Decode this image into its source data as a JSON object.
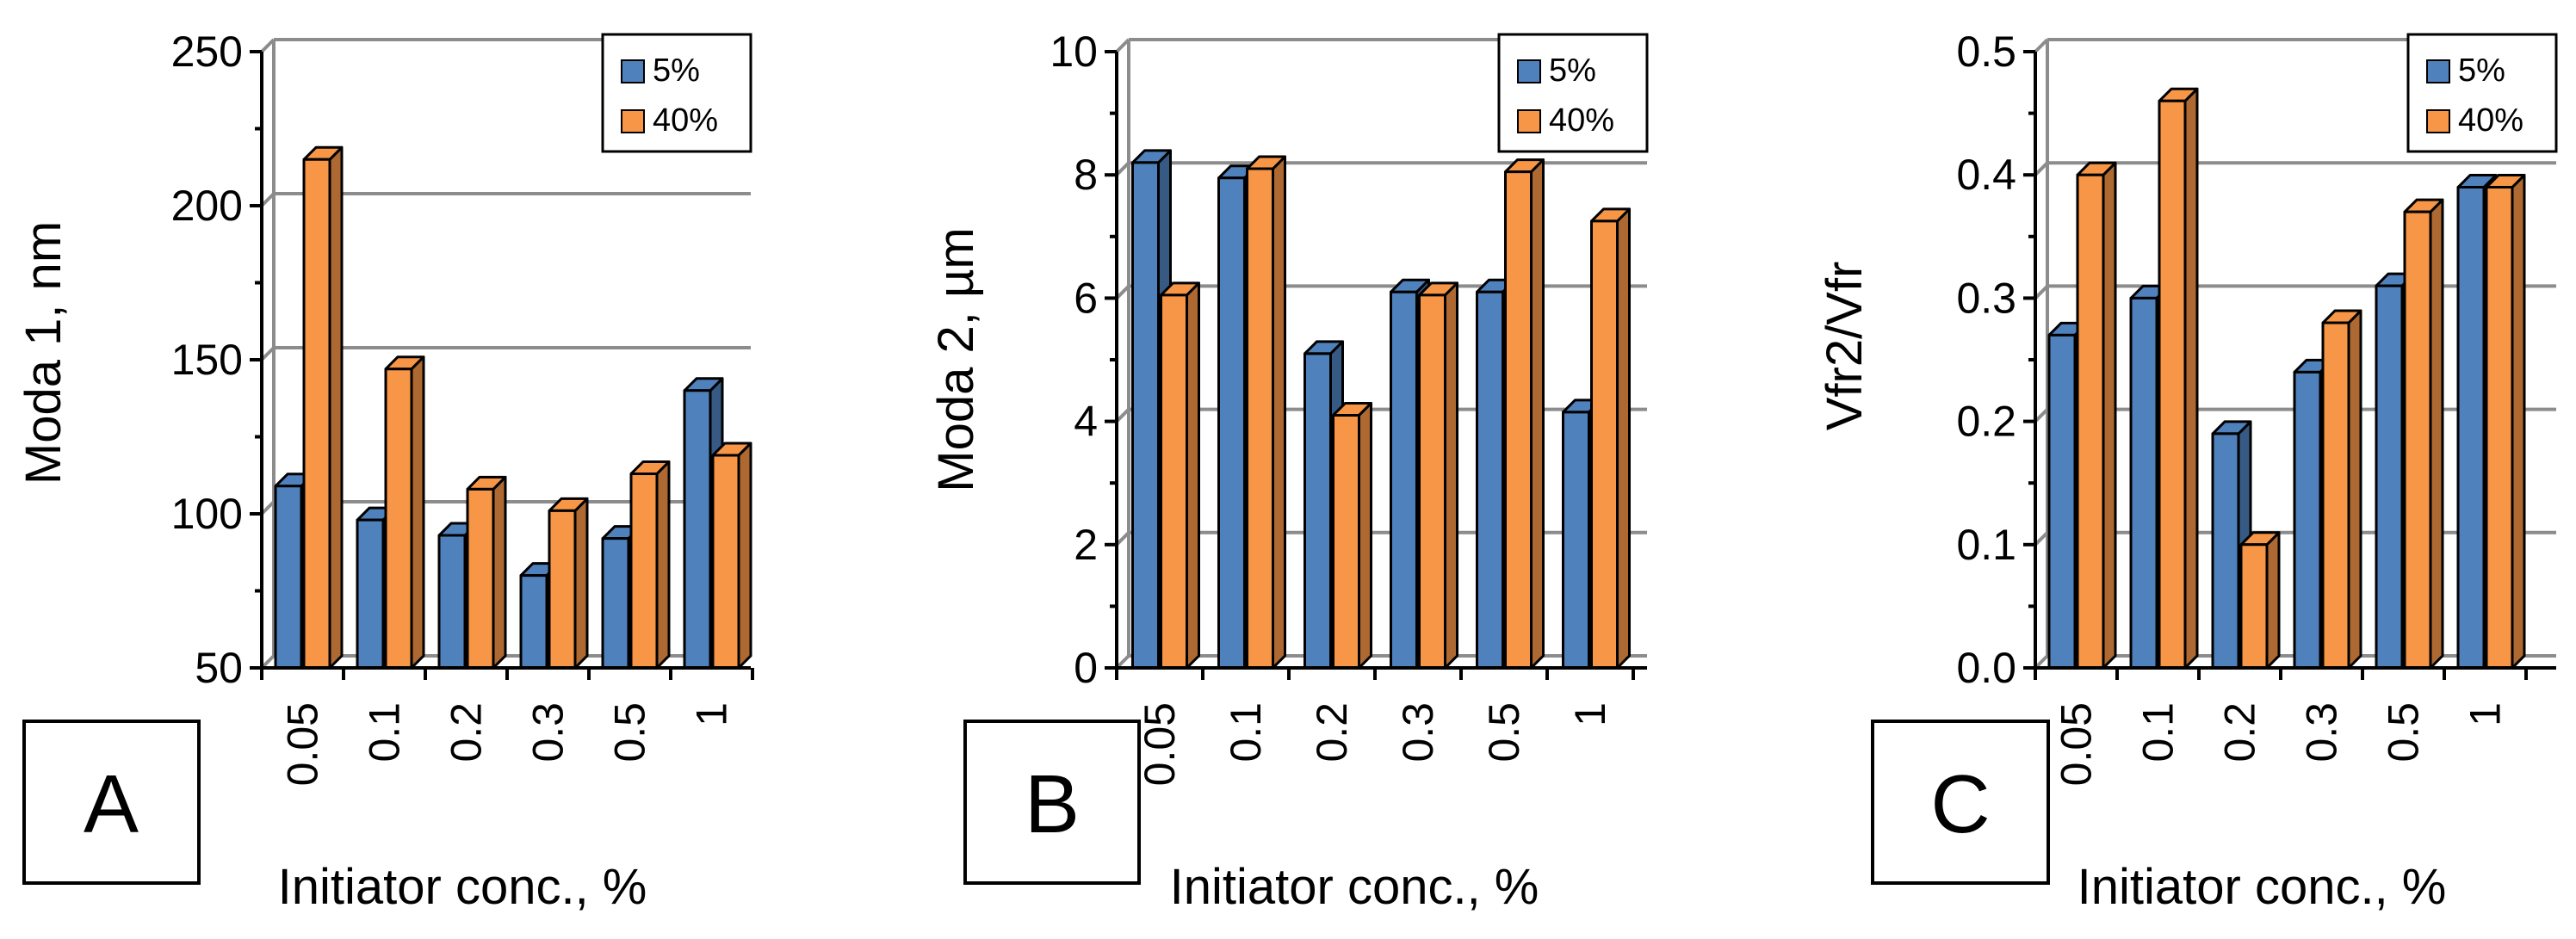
{
  "chart_data": [
    {
      "type": "bar",
      "panel_label": "A",
      "categories": [
        "0.05",
        "0.1",
        "0.2",
        "0.3",
        "0.5",
        "1"
      ],
      "series": [
        {
          "name": "5%",
          "values": [
            109,
            98,
            93,
            80,
            92,
            140
          ]
        },
        {
          "name": "40%",
          "values": [
            215,
            147,
            108,
            101,
            113,
            119
          ]
        }
      ],
      "xlabel": "Initiator conc., %",
      "ylabel": "Moda 1, nm",
      "ylim": [
        50,
        250
      ],
      "yticks": [
        "50",
        "100",
        "150",
        "200",
        "250"
      ],
      "grid": true,
      "legend": "top-right"
    },
    {
      "type": "bar",
      "panel_label": "B",
      "categories": [
        "0.05",
        "0.1",
        "0.2",
        "0.3",
        "0.5",
        "1"
      ],
      "series": [
        {
          "name": "5%",
          "values": [
            8.2,
            7.95,
            5.1,
            6.1,
            6.1,
            4.15
          ]
        },
        {
          "name": "40%",
          "values": [
            6.05,
            8.1,
            4.1,
            6.05,
            8.05,
            7.25
          ]
        }
      ],
      "xlabel": "Initiator conc., %",
      "ylabel": "Moda 2, µm",
      "ylim": [
        0,
        10
      ],
      "yticks": [
        "0",
        "2",
        "4",
        "6",
        "8",
        "10"
      ],
      "grid": true,
      "legend": "top-right"
    },
    {
      "type": "bar",
      "panel_label": "C",
      "categories": [
        "0.05",
        "0.1",
        "0.2",
        "0.3",
        "0.5",
        "1"
      ],
      "series": [
        {
          "name": "5%",
          "values": [
            0.27,
            0.3,
            0.19,
            0.24,
            0.31,
            0.39
          ]
        },
        {
          "name": "40%",
          "values": [
            0.4,
            0.46,
            0.1,
            0.28,
            0.37,
            0.39
          ]
        }
      ],
      "xlabel": "Initiator conc., %",
      "ylabel": "Vfr2/Vfr",
      "ylim": [
        0,
        0.5
      ],
      "yticks": [
        "0.0",
        "0.1",
        "0.2",
        "0.3",
        "0.4",
        "0.5"
      ],
      "grid": true,
      "legend": "top-right"
    }
  ],
  "colors": {
    "series_5": "#4f81bd",
    "series_40": "#f79646",
    "grid": "#8c8c8c",
    "axis": "#000000"
  }
}
